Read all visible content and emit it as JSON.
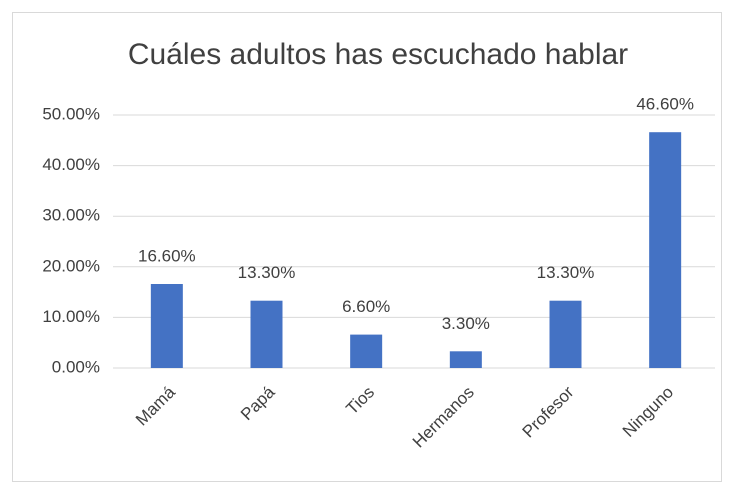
{
  "chart_data": {
    "type": "bar",
    "title": "Cuáles adultos has escuchado hablar",
    "categories": [
      "Mamá",
      "Papá",
      "Tios",
      "Hermanos",
      "Profesor",
      "Ninguno"
    ],
    "values": [
      16.6,
      13.3,
      6.6,
      3.3,
      13.3,
      46.6
    ],
    "value_labels": [
      "16.60%",
      "13.30%",
      "6.60%",
      "3.30%",
      "13.30%",
      "46.60%"
    ],
    "color": "#4472c4",
    "ylim": [
      0,
      50
    ],
    "yticks": [
      {
        "value": 0,
        "label": "0.00%"
      },
      {
        "value": 10,
        "label": "10.00%"
      },
      {
        "value": 20,
        "label": "20.00%"
      },
      {
        "value": 30,
        "label": "30.00%"
      },
      {
        "value": 40,
        "label": "40.00%"
      },
      {
        "value": 50,
        "label": "50.00%"
      }
    ],
    "grid": true
  }
}
